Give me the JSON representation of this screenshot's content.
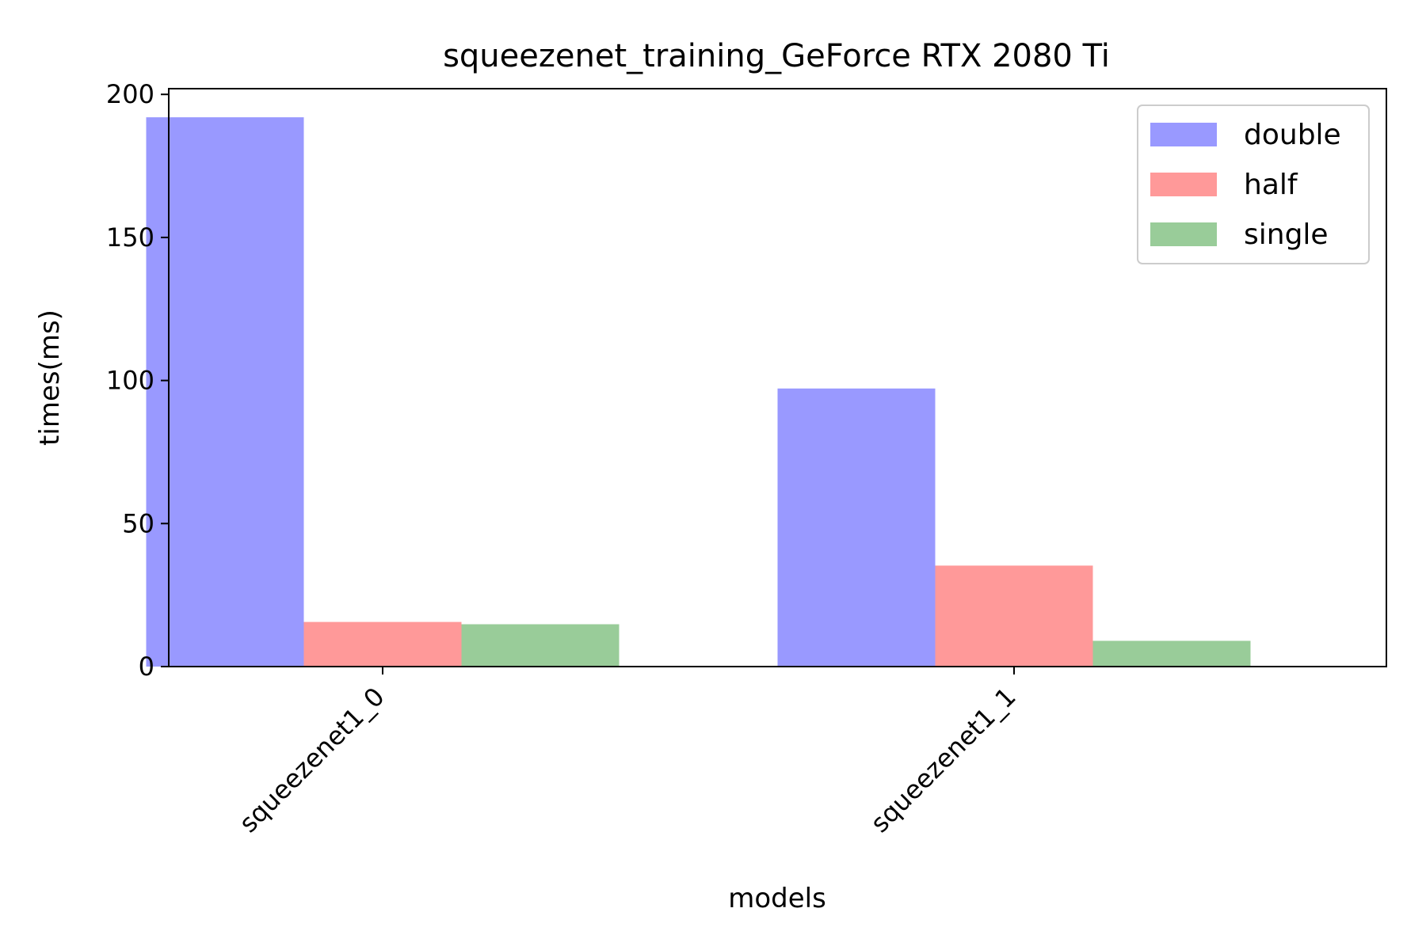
{
  "chart_data": {
    "type": "bar",
    "title": "squeezenet_training_GeForce RTX 2080 Ti",
    "xlabel": "models",
    "ylabel": "times(ms)",
    "categories": [
      "squeezenet1_0",
      "squeezenet1_1"
    ],
    "series": [
      {
        "name": "double",
        "values": [
          192,
          97.2
        ],
        "color": "#9999ff"
      },
      {
        "name": "half",
        "values": [
          15.6,
          35.3
        ],
        "color": "#ff9999"
      },
      {
        "name": "single",
        "values": [
          14.8,
          9.0
        ],
        "color": "#99cc99"
      }
    ],
    "ylim": [
      0,
      202
    ],
    "yticks": [
      "0",
      "50",
      "100",
      "150",
      "200"
    ],
    "grid": false,
    "legend_position": "top-right"
  }
}
